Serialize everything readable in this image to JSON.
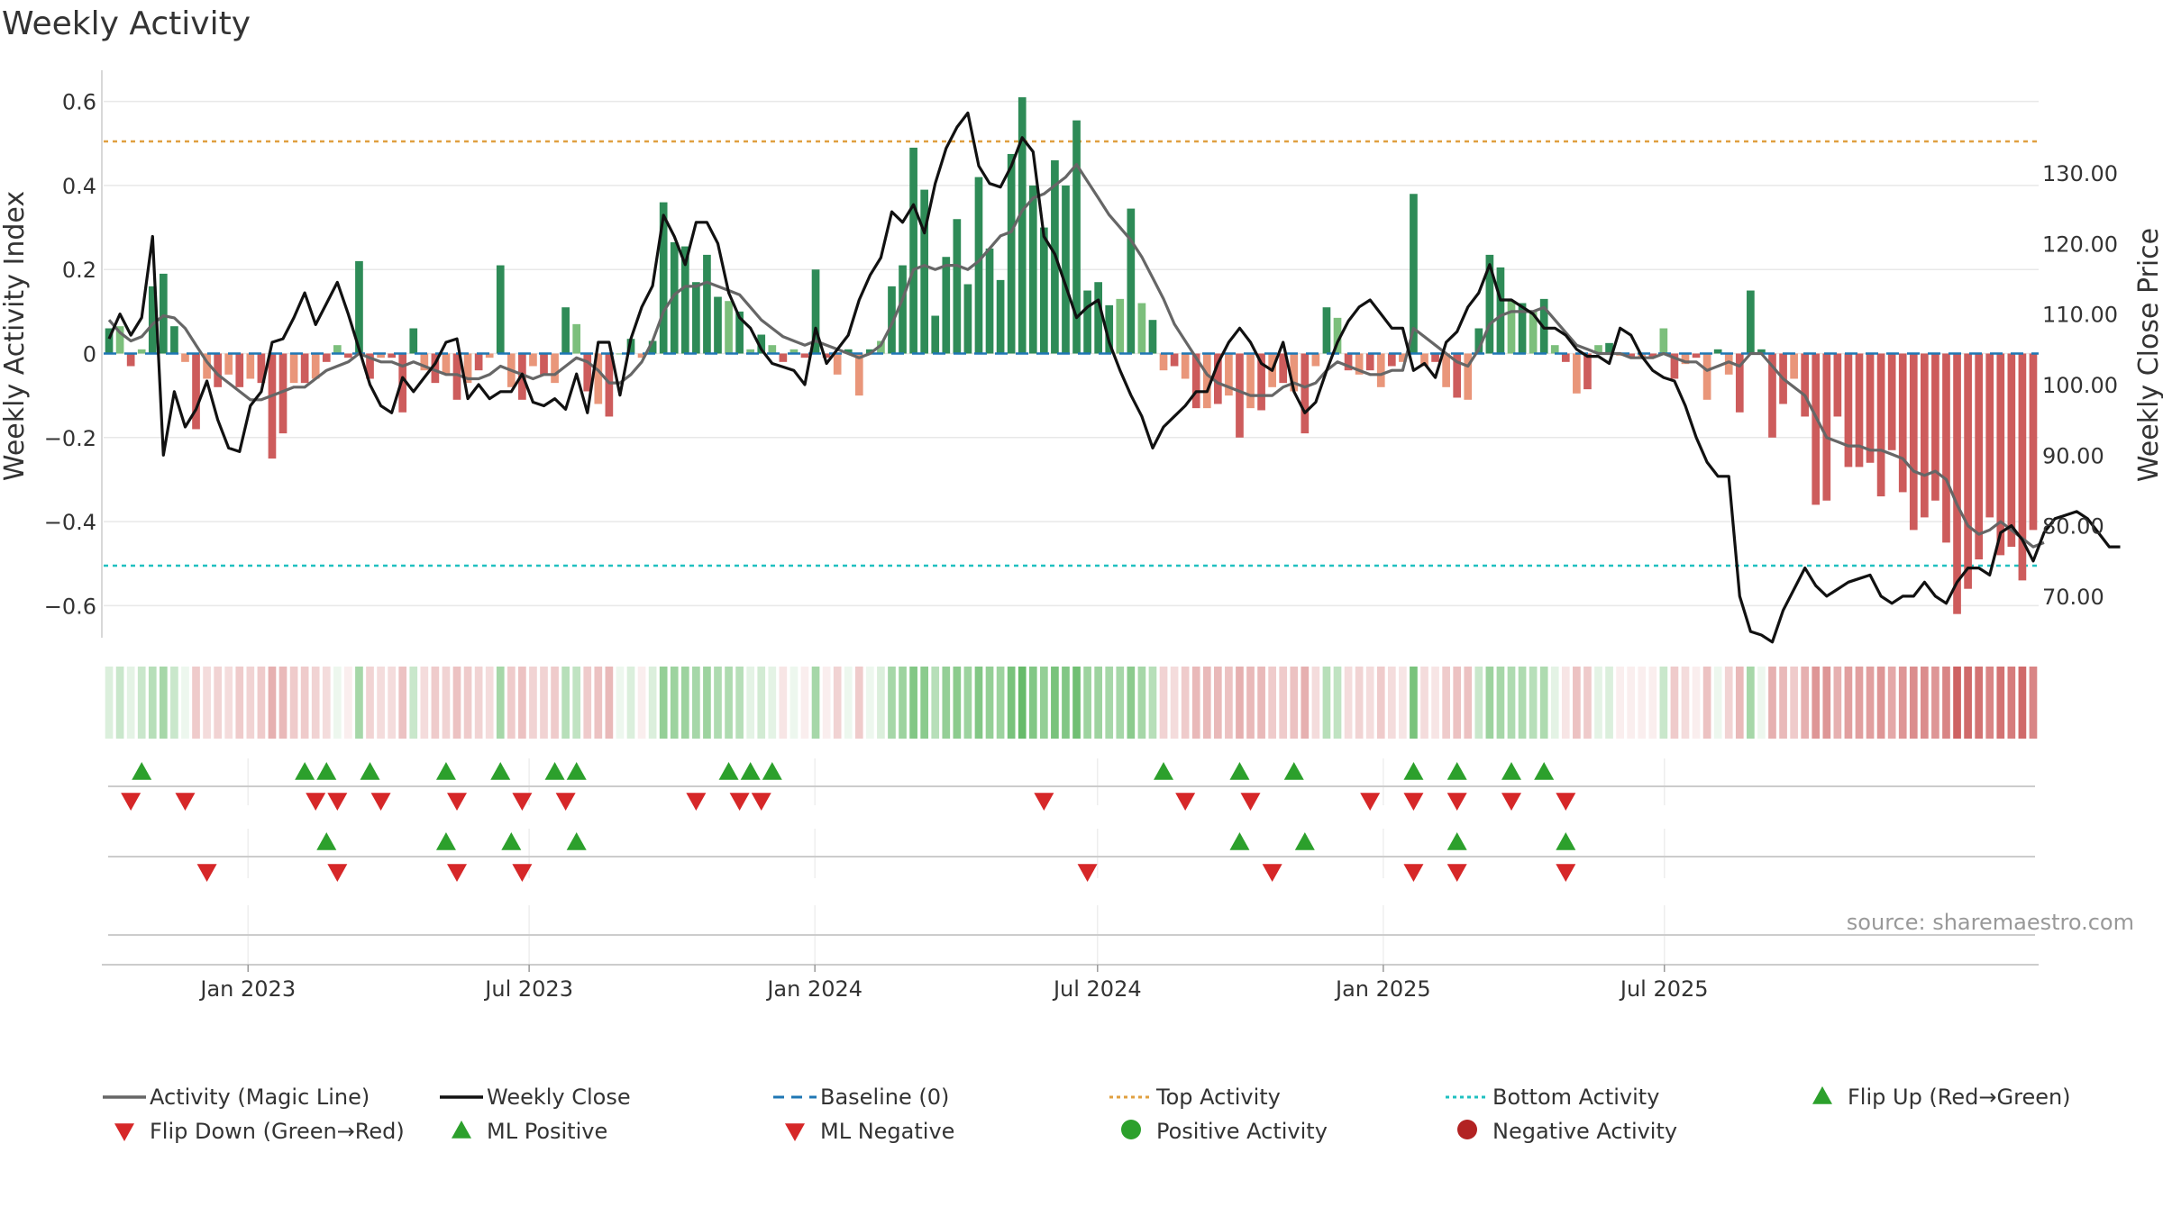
{
  "title": "Weekly Activity",
  "source": "source: sharemaestro.com",
  "colors": {
    "strong_green": "#2e8b57",
    "light_green": "#7cbf7c",
    "strong_red": "#cd5c5c",
    "light_red": "#e9967a",
    "magic_line": "#666666",
    "close_line": "#111111",
    "baseline": "#1f77b4",
    "top": "#e0a040",
    "bottom": "#20c0c0",
    "marker_green": "#2ca02c",
    "marker_red": "#d62728",
    "neg_activity": "#b22222"
  },
  "chart_data": {
    "type": "bar",
    "title": "Weekly Activity",
    "ylabel": "Weekly Activity Index",
    "y2label": "Weekly Close Price",
    "ylim": [
      -0.67,
      0.67
    ],
    "y2lim": [
      64.5,
      144.3
    ],
    "yticks": [
      "0.6",
      "0.4",
      "0.2",
      "0",
      "−0.2",
      "−0.4",
      "−0.6"
    ],
    "yticks_values": [
      0.6,
      0.4,
      0.2,
      0,
      -0.2,
      -0.4,
      -0.6
    ],
    "y2ticks": [
      "130.00",
      "120.00",
      "110.00",
      "100.00",
      "90.00",
      "80.00",
      "70.00"
    ],
    "y2ticks_values": [
      130,
      120,
      110,
      100,
      90,
      80,
      70
    ],
    "xtick_labels": [
      "Jan 2023",
      "Jul 2023",
      "Jan 2024",
      "Jul 2024",
      "Jan 2025",
      "Jul 2025"
    ],
    "xtick_dates": [
      "2023-01-01",
      "2023-07-01",
      "2024-01-01",
      "2024-07-01",
      "2025-01-01",
      "2025-07-01"
    ],
    "start_date": "2022-09-30",
    "top_activity": 0.505,
    "bottom_activity": -0.505,
    "activity": [
      0.06,
      0.065,
      -0.03,
      0.01,
      0.16,
      0.19,
      0.065,
      -0.02,
      -0.18,
      -0.06,
      -0.08,
      -0.05,
      -0.08,
      -0.06,
      -0.07,
      -0.25,
      -0.19,
      -0.07,
      -0.07,
      -0.06,
      -0.02,
      0.02,
      -0.01,
      0.22,
      -0.06,
      -0.01,
      -0.01,
      -0.14,
      0.06,
      -0.04,
      -0.07,
      -0.05,
      -0.11,
      -0.07,
      -0.04,
      -0.01,
      0.21,
      -0.08,
      -0.11,
      -0.03,
      -0.05,
      -0.07,
      0.11,
      0.07,
      -0.09,
      -0.12,
      -0.15,
      0.0,
      0.035,
      -0.01,
      0.03,
      0.36,
      0.265,
      0.255,
      0.17,
      0.235,
      0.135,
      0.125,
      0.1,
      0.01,
      0.045,
      0.02,
      -0.02,
      0.01,
      -0.01,
      0.2,
      -0.01,
      -0.05,
      0.01,
      -0.1,
      0.01,
      0.03,
      0.16,
      0.21,
      0.49,
      0.39,
      0.09,
      0.23,
      0.32,
      0.165,
      0.42,
      0.25,
      0.175,
      0.475,
      0.61,
      0.4,
      0.3,
      0.46,
      0.4,
      0.555,
      0.15,
      0.17,
      0.115,
      0.13,
      0.345,
      0.12,
      0.08,
      -0.04,
      -0.03,
      -0.06,
      -0.13,
      -0.13,
      -0.12,
      -0.1,
      -0.2,
      -0.13,
      -0.135,
      -0.08,
      -0.07,
      -0.09,
      -0.19,
      -0.03,
      0.11,
      0.085,
      -0.04,
      -0.05,
      -0.04,
      -0.08,
      -0.03,
      -0.02,
      0.38,
      -0.03,
      -0.02,
      -0.08,
      -0.105,
      -0.11,
      0.06,
      0.235,
      0.205,
      0.125,
      0.12,
      0.1,
      0.13,
      0.02,
      -0.02,
      -0.095,
      -0.085,
      0.02,
      0.025,
      -0.005,
      -0.01,
      -0.01,
      -0.01,
      0.06,
      -0.06,
      -0.025,
      -0.01,
      -0.11,
      0.01,
      -0.05,
      -0.14,
      0.15,
      0.01,
      -0.2,
      -0.12,
      -0.06,
      -0.15,
      -0.36,
      -0.35,
      -0.15,
      -0.27,
      -0.27,
      -0.26,
      -0.34,
      -0.23,
      -0.33,
      -0.42,
      -0.39,
      -0.35,
      -0.45,
      -0.62,
      -0.56,
      -0.49,
      -0.39,
      -0.48,
      -0.46,
      -0.54,
      -0.42
    ],
    "magic_line": [
      0.08,
      0.05,
      0.03,
      0.04,
      0.07,
      0.09,
      0.085,
      0.06,
      0.02,
      -0.02,
      -0.05,
      -0.07,
      -0.09,
      -0.11,
      -0.11,
      -0.1,
      -0.09,
      -0.08,
      -0.08,
      -0.06,
      -0.04,
      -0.03,
      -0.02,
      0.0,
      -0.01,
      -0.02,
      -0.02,
      -0.03,
      -0.02,
      -0.03,
      -0.04,
      -0.05,
      -0.05,
      -0.06,
      -0.06,
      -0.05,
      -0.03,
      -0.04,
      -0.05,
      -0.06,
      -0.05,
      -0.05,
      -0.03,
      -0.01,
      -0.02,
      -0.04,
      -0.07,
      -0.07,
      -0.05,
      -0.02,
      0.03,
      0.1,
      0.14,
      0.16,
      0.16,
      0.17,
      0.16,
      0.15,
      0.14,
      0.11,
      0.08,
      0.06,
      0.04,
      0.03,
      0.02,
      0.03,
      0.02,
      0.01,
      0.0,
      -0.01,
      0.0,
      0.02,
      0.07,
      0.13,
      0.2,
      0.21,
      0.2,
      0.21,
      0.21,
      0.2,
      0.22,
      0.25,
      0.28,
      0.29,
      0.34,
      0.37,
      0.38,
      0.4,
      0.42,
      0.45,
      0.41,
      0.37,
      0.33,
      0.3,
      0.27,
      0.23,
      0.18,
      0.13,
      0.07,
      0.03,
      -0.01,
      -0.05,
      -0.07,
      -0.08,
      -0.09,
      -0.1,
      -0.1,
      -0.1,
      -0.08,
      -0.07,
      -0.08,
      -0.07,
      -0.04,
      -0.02,
      -0.03,
      -0.04,
      -0.05,
      -0.05,
      -0.04,
      -0.04,
      0.06,
      0.04,
      0.02,
      0.0,
      -0.02,
      -0.03,
      0.01,
      0.07,
      0.09,
      0.1,
      0.1,
      0.1,
      0.11,
      0.08,
      0.05,
      0.02,
      0.01,
      0.0,
      0.0,
      0.0,
      -0.01,
      -0.01,
      -0.01,
      0.0,
      -0.01,
      -0.02,
      -0.02,
      -0.04,
      -0.03,
      -0.02,
      -0.03,
      0.0,
      0.0,
      -0.03,
      -0.06,
      -0.08,
      -0.1,
      -0.15,
      -0.2,
      -0.21,
      -0.22,
      -0.22,
      -0.23,
      -0.23,
      -0.24,
      -0.25,
      -0.28,
      -0.29,
      -0.28,
      -0.3,
      -0.36,
      -0.41,
      -0.43,
      -0.42,
      -0.4,
      -0.42,
      -0.44,
      -0.46,
      -0.45
    ],
    "weekly_close": [
      106.5,
      110,
      107,
      109.5,
      121,
      90,
      99,
      94,
      96.5,
      100.5,
      95,
      91,
      90.5,
      97,
      99,
      106,
      106.5,
      109.5,
      113,
      108.5,
      111.5,
      114.5,
      110,
      105,
      100,
      97,
      96,
      101,
      99,
      101,
      103,
      106,
      106.5,
      98,
      100,
      98,
      99,
      99,
      101.5,
      97.5,
      97,
      98,
      96.5,
      101.5,
      96,
      106,
      106,
      98.5,
      106.5,
      111,
      114,
      124,
      121,
      117,
      123,
      123,
      120,
      113,
      109.5,
      108,
      105,
      103,
      102.5,
      102,
      100,
      108,
      103,
      105,
      107,
      112,
      115.5,
      118,
      124.5,
      123,
      125.5,
      121.5,
      128.5,
      133.5,
      136.5,
      138.5,
      131,
      128.5,
      128,
      131,
      135,
      133,
      121,
      118.5,
      114,
      109.5,
      111,
      112,
      106,
      102,
      98.5,
      95.5,
      91,
      94,
      95.5,
      97,
      99,
      99,
      103,
      106,
      108,
      106,
      103,
      102,
      106,
      99,
      96,
      97.5,
      102,
      106,
      109,
      111,
      112,
      110,
      108,
      108,
      102,
      103,
      101,
      106,
      107.5,
      111,
      113,
      117,
      112,
      112,
      111,
      110,
      108,
      108,
      107,
      105,
      104,
      104,
      103,
      108,
      107,
      104,
      102,
      101,
      100.5,
      97,
      92.5,
      89,
      87,
      87,
      70,
      65,
      64.5,
      63.5,
      68,
      71,
      74,
      71.5,
      70,
      71,
      72,
      72.5,
      73,
      70,
      69,
      70,
      70,
      72,
      70,
      69,
      72,
      74,
      74,
      73,
      79,
      80,
      78,
      75,
      79,
      81,
      81.5,
      82,
      81,
      79,
      77,
      77
    ],
    "color_strip_score": [
      0.2,
      0.3,
      0.15,
      0.3,
      0.4,
      0.5,
      0.3,
      0.1,
      -0.3,
      -0.2,
      -0.25,
      -0.2,
      -0.3,
      -0.25,
      -0.3,
      -0.45,
      -0.4,
      -0.3,
      -0.3,
      -0.25,
      -0.2,
      0.1,
      -0.1,
      0.5,
      -0.25,
      -0.2,
      -0.2,
      -0.35,
      0.3,
      -0.2,
      -0.3,
      -0.25,
      -0.35,
      -0.3,
      -0.25,
      -0.2,
      0.5,
      -0.3,
      -0.35,
      -0.25,
      -0.25,
      -0.3,
      0.4,
      0.35,
      -0.3,
      -0.35,
      -0.4,
      0.1,
      0.2,
      -0.1,
      0.2,
      0.6,
      0.55,
      0.55,
      0.5,
      0.55,
      0.45,
      0.45,
      0.4,
      0.15,
      0.25,
      0.15,
      -0.15,
      0.1,
      -0.1,
      0.5,
      -0.1,
      -0.25,
      0.1,
      -0.3,
      0.1,
      0.2,
      0.5,
      0.55,
      0.7,
      0.65,
      0.4,
      0.6,
      0.65,
      0.55,
      0.7,
      0.6,
      0.55,
      0.75,
      0.85,
      0.7,
      0.6,
      0.75,
      0.7,
      0.8,
      0.55,
      0.55,
      0.5,
      0.5,
      0.65,
      0.5,
      0.4,
      -0.25,
      -0.2,
      -0.3,
      -0.4,
      -0.4,
      -0.4,
      -0.35,
      -0.45,
      -0.4,
      -0.4,
      -0.3,
      -0.3,
      -0.35,
      -0.45,
      -0.2,
      0.4,
      0.35,
      -0.2,
      -0.25,
      -0.2,
      -0.3,
      -0.2,
      -0.15,
      0.75,
      -0.2,
      -0.15,
      -0.3,
      -0.35,
      -0.35,
      0.3,
      0.55,
      0.5,
      0.45,
      0.45,
      0.4,
      0.45,
      0.15,
      -0.15,
      -0.35,
      -0.3,
      0.15,
      0.2,
      -0.1,
      -0.1,
      -0.1,
      -0.1,
      0.3,
      -0.3,
      -0.2,
      -0.1,
      -0.35,
      0.1,
      -0.25,
      -0.4,
      0.5,
      0.1,
      -0.45,
      -0.4,
      -0.3,
      -0.45,
      -0.6,
      -0.6,
      -0.45,
      -0.55,
      -0.55,
      -0.55,
      -0.6,
      -0.5,
      -0.6,
      -0.65,
      -0.65,
      -0.6,
      -0.7,
      -0.9,
      -0.85,
      -0.8,
      -0.7,
      -0.8,
      -0.75,
      -0.85,
      -0.7
    ],
    "flip_up_weeks": [
      3,
      18,
      20,
      24,
      31,
      36,
      41,
      43,
      57,
      59,
      61,
      97,
      104,
      109,
      120,
      124,
      129,
      132
    ],
    "flip_down_weeks": [
      2,
      7,
      19,
      21,
      25,
      32,
      38,
      42,
      54,
      58,
      60,
      86,
      99,
      105,
      116,
      120,
      124,
      129,
      134
    ],
    "ml_positive_weeks": [
      20,
      31,
      37,
      43,
      104,
      110,
      124,
      134
    ],
    "ml_negative_weeks": [
      9,
      21,
      32,
      38,
      90,
      107,
      120,
      124,
      134
    ],
    "legend": [
      {
        "label": "Activity (Magic Line)",
        "kind": "line",
        "color": "#666666"
      },
      {
        "label": "Weekly Close",
        "kind": "line",
        "color": "#111111"
      },
      {
        "label": "Baseline (0)",
        "kind": "dash",
        "color": "#1f77b4"
      },
      {
        "label": "Top Activity",
        "kind": "dot",
        "color": "#e0a040"
      },
      {
        "label": "Bottom Activity",
        "kind": "dot",
        "color": "#20c0c0"
      },
      {
        "label": "Flip Up (Red→Green)",
        "kind": "tri-up",
        "color": "#2ca02c"
      },
      {
        "label": "Flip Down (Green→Red)",
        "kind": "tri-down",
        "color": "#d62728"
      },
      {
        "label": "ML Positive",
        "kind": "tri-up",
        "color": "#2ca02c"
      },
      {
        "label": "ML Negative",
        "kind": "tri-down",
        "color": "#d62728"
      },
      {
        "label": "Positive Activity",
        "kind": "circle",
        "color": "#2ca02c"
      },
      {
        "label": "Negative Activity",
        "kind": "circle",
        "color": "#b22222"
      }
    ]
  }
}
